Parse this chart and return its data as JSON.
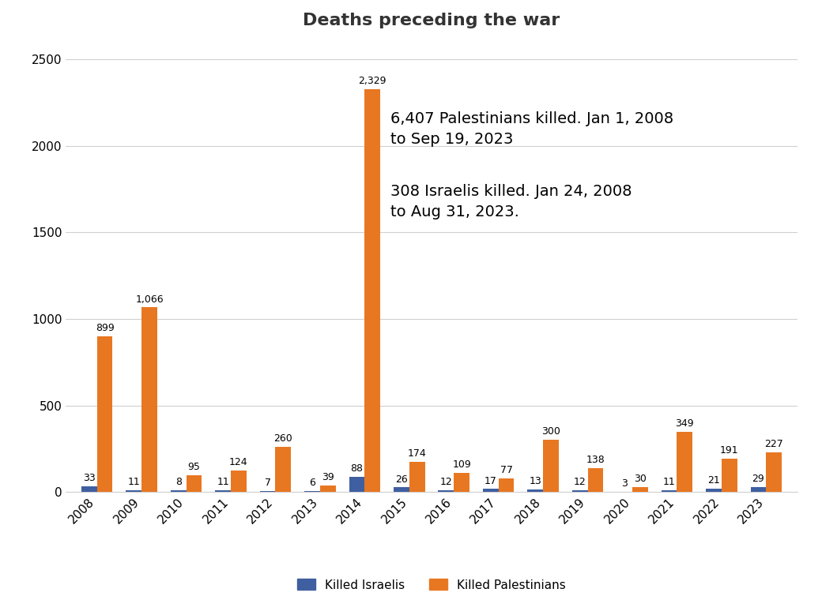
{
  "title": "Deaths preceding the war",
  "years": [
    2008,
    2009,
    2010,
    2011,
    2012,
    2013,
    2014,
    2015,
    2016,
    2017,
    2018,
    2019,
    2020,
    2021,
    2022,
    2023
  ],
  "israelis": [
    33,
    11,
    8,
    11,
    7,
    6,
    88,
    26,
    12,
    17,
    13,
    12,
    3,
    11,
    21,
    29
  ],
  "palestinians": [
    899,
    1066,
    95,
    124,
    260,
    39,
    2329,
    174,
    109,
    77,
    300,
    138,
    30,
    349,
    191,
    227
  ],
  "israeli_color": "#3F5FA0",
  "palestinian_color": "#E87722",
  "ylim": [
    0,
    2600
  ],
  "yticks": [
    0,
    500,
    1000,
    1500,
    2000,
    2500
  ],
  "annotation_text_1": "6,407 Palestinians killed. Jan 1, 2008\nto Sep 19, 2023",
  "annotation_text_2": "308 Israelis killed. Jan 24, 2008\nto Aug 31, 2023.",
  "legend_label_israeli": "Killed Israelis",
  "legend_label_palestinian": "Killed Palestinians",
  "bar_width": 0.35,
  "figsize": [
    10.4,
    7.6
  ],
  "dpi": 100,
  "background_color": "#ffffff",
  "grid_color": "#d0d0d0",
  "title_fontsize": 16,
  "label_fontsize": 9,
  "annotation_fontsize": 14,
  "tick_fontsize": 11,
  "legend_fontsize": 11
}
